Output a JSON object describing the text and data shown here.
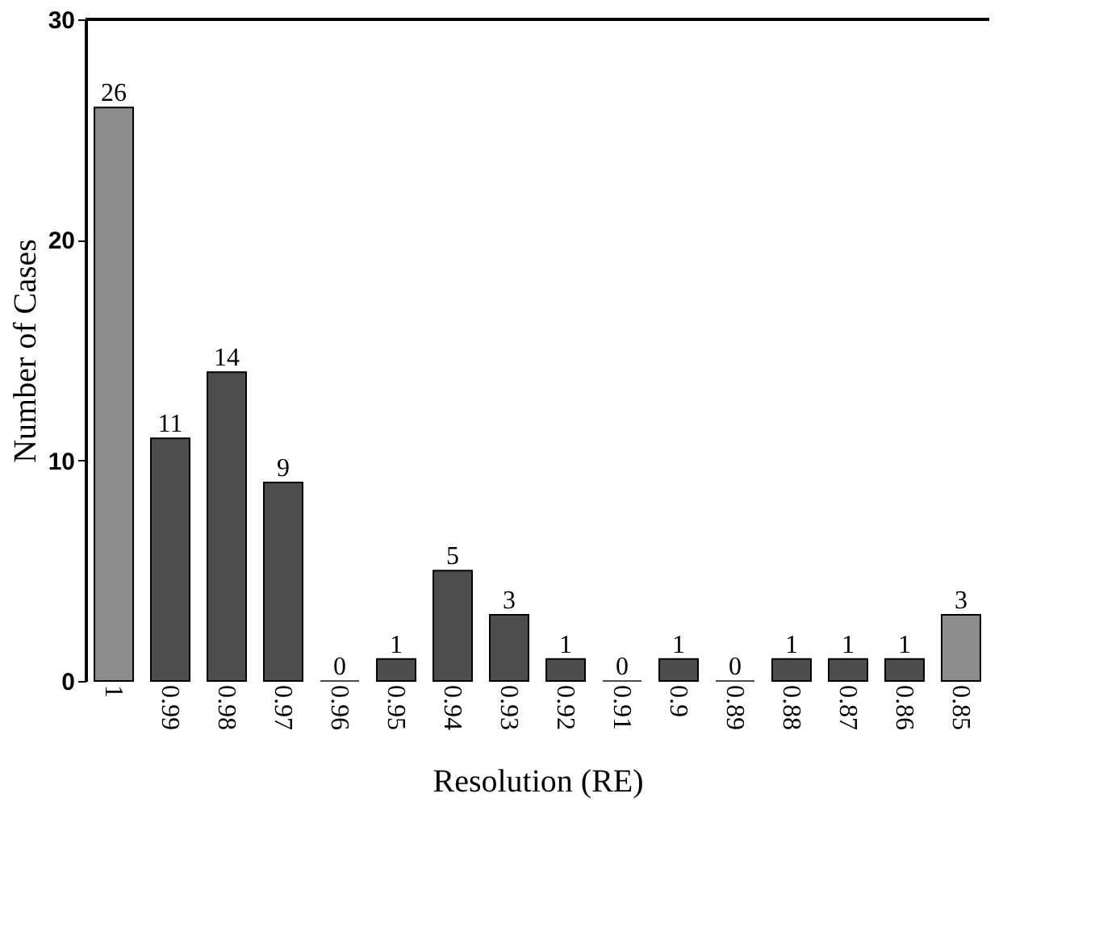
{
  "chart_data": {
    "type": "bar",
    "xlabel": "Resolution (RE)",
    "ylabel": "Number of Cases",
    "categories": [
      "1",
      "0.99",
      "0.98",
      "0.97",
      "0.96",
      "0.95",
      "0.94",
      "0.93",
      "0.92",
      "0.91",
      "0.9",
      "0.89",
      "0.88",
      "0.87",
      "0.86",
      "0.85"
    ],
    "values": [
      26,
      11,
      14,
      9,
      0,
      1,
      5,
      3,
      1,
      0,
      1,
      0,
      1,
      1,
      1,
      3
    ],
    "colors": [
      "#8c8c8c",
      "#4d4d4d",
      "#4d4d4d",
      "#4d4d4d",
      "#4d4d4d",
      "#4d4d4d",
      "#4d4d4d",
      "#4d4d4d",
      "#4d4d4d",
      "#4d4d4d",
      "#4d4d4d",
      "#4d4d4d",
      "#4d4d4d",
      "#4d4d4d",
      "#4d4d4d",
      "#8c8c8c"
    ],
    "ylim": [
      0,
      30
    ],
    "yticks": [
      0,
      10,
      20,
      30
    ],
    "data_labels": true,
    "grid": false
  }
}
